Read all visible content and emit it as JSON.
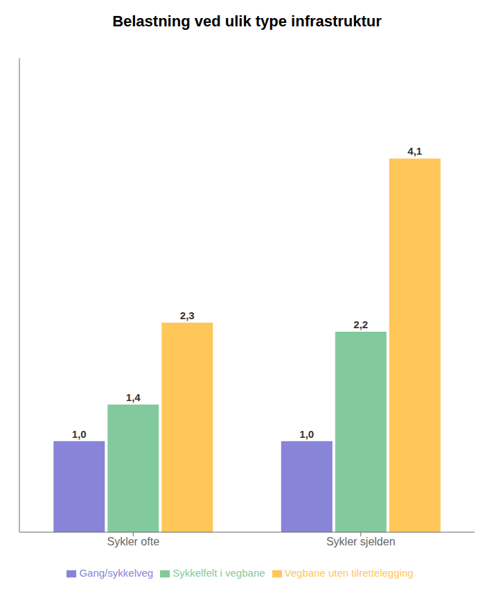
{
  "chart_data": {
    "type": "bar",
    "title": "Belastning ved ulik type infrastruktur",
    "categories": [
      "Sykler ofte",
      "Sykler sjelden"
    ],
    "series": [
      {
        "name": "Gang/sykkelveg",
        "color": "#8884d8",
        "values": [
          1.0,
          1.0
        ],
        "value_labels": [
          "1,0",
          "1,0"
        ]
      },
      {
        "name": "Sykkelfelt i vegbane",
        "color": "#82ca9d",
        "values": [
          1.4,
          2.2
        ],
        "value_labels": [
          "1,4",
          "2,2"
        ]
      },
      {
        "name": "Vegbane uten tilrettelegging",
        "color": "#ffc658",
        "values": [
          2.3,
          4.1
        ],
        "value_labels": [
          "2,3",
          "4,1"
        ]
      }
    ],
    "ylim": [
      0,
      5.2
    ],
    "data_labels": true,
    "tick_labels": "x",
    "legend": "bottom",
    "grid": false
  }
}
